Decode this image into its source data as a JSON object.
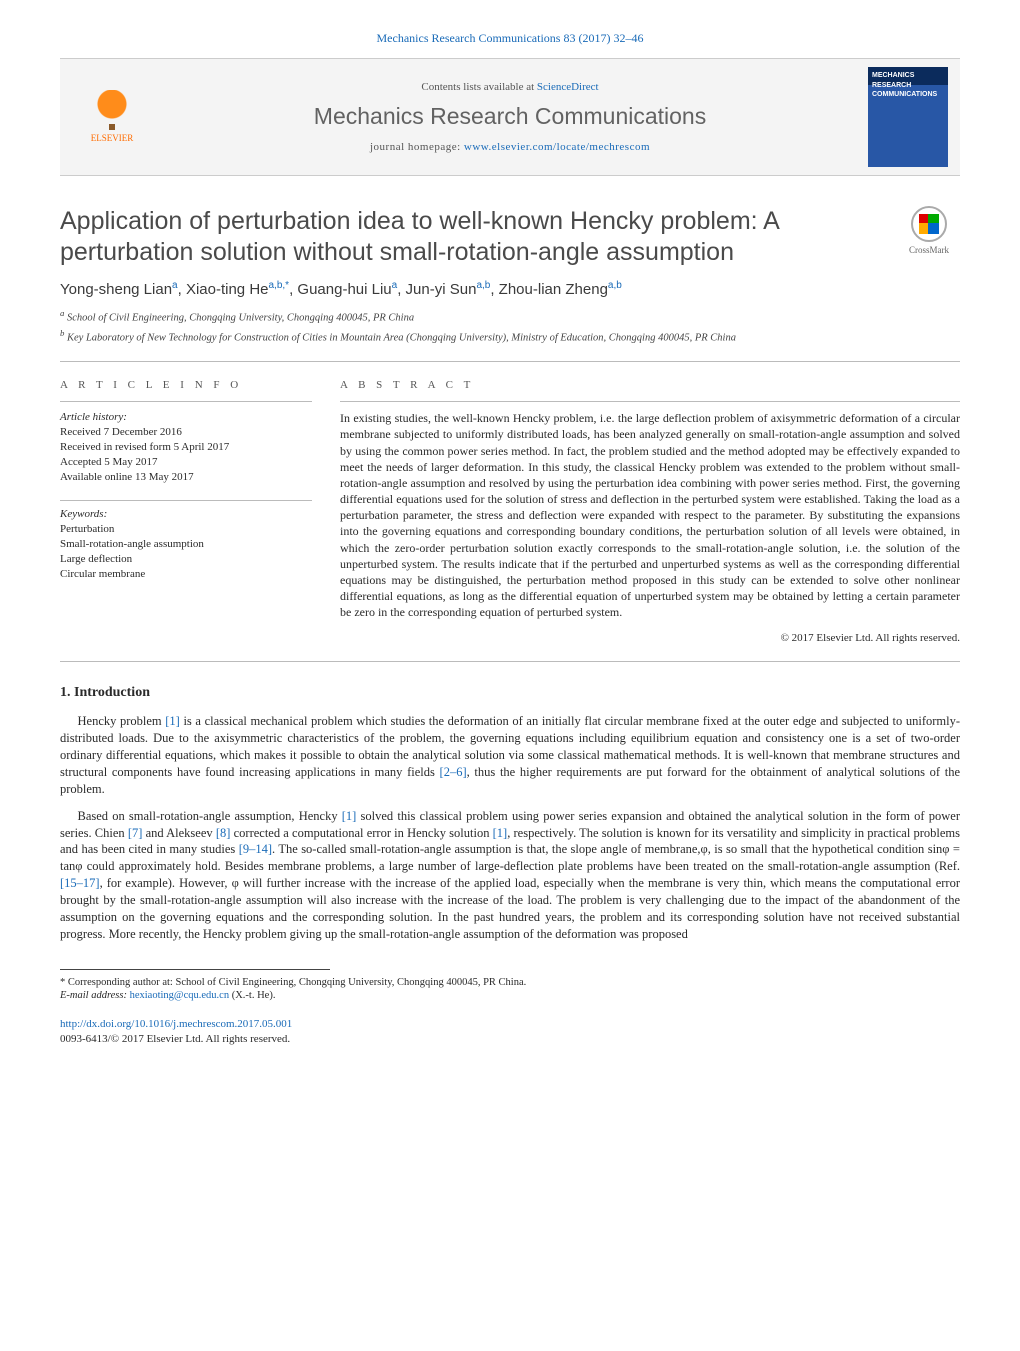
{
  "header_citation": "Mechanics Research Communications 83 (2017) 32–46",
  "banner": {
    "publisher_name": "ELSEVIER",
    "contents_text": "Contents lists available at ",
    "contents_link": "ScienceDirect",
    "journal_title": "Mechanics Research Communications",
    "homepage_label": "journal homepage: ",
    "homepage_url": "www.elsevier.com/locate/mechrescom",
    "cover_text": "MECHANICS\nRESEARCH COMMUNICATIONS"
  },
  "crossmark_label": "CrossMark",
  "title": "Application of perturbation idea to well-known Hencky problem: A perturbation solution without small-rotation-angle assumption",
  "authors_html": "Yong-sheng Lian<sup>a</sup>, Xiao-ting He<sup>a,b,*</sup>, Guang-hui Liu<sup>a</sup>, Jun-yi Sun<sup>a,b</sup>, Zhou-lian Zheng<sup>a,b</sup>",
  "affiliations": [
    "School of Civil Engineering, Chongqing University, Chongqing 400045, PR China",
    "Key Laboratory of New Technology for Construction of Cities in Mountain Area (Chongqing University), Ministry of Education, Chongqing 400045, PR China"
  ],
  "article_info_label": "A R T I C L E   I N F O",
  "abstract_label": "A B S T R A C T",
  "history": {
    "label": "Article history:",
    "received": "Received 7 December 2016",
    "revised": "Received in revised form 5 April 2017",
    "accepted": "Accepted 5 May 2017",
    "online": "Available online 13 May 2017"
  },
  "keywords": {
    "label": "Keywords:",
    "items": [
      "Perturbation",
      "Small-rotation-angle assumption",
      "Large deflection",
      "Circular membrane"
    ]
  },
  "abstract": "In existing studies, the well-known Hencky problem, i.e. the large deflection problem of axisymmetric deformation of a circular membrane subjected to uniformly distributed loads, has been analyzed generally on small-rotation-angle assumption and solved by using the common power series method. In fact, the problem studied and the method adopted may be effectively expanded to meet the needs of larger deformation. In this study, the classical Hencky problem was extended to the problem without small-rotation-angle assumption and resolved by using the perturbation idea combining with power series method. First, the governing differential equations used for the solution of stress and deflection in the perturbed system were established. Taking the load as a perturbation parameter, the stress and deflection were expanded with respect to the parameter. By substituting the expansions into the governing equations and corresponding boundary conditions, the perturbation solution of all levels were obtained, in which the zero-order perturbation solution exactly corresponds to the small-rotation-angle solution, i.e. the solution of the unperturbed system. The results indicate that if the perturbed and unperturbed systems as well as the corresponding differential equations may be distinguished, the perturbation method proposed in this study can be extended to solve other nonlinear differential equations, as long as the differential equation of unperturbed system may be obtained by letting a certain parameter be zero in the corresponding equation of perturbed system.",
  "copyright": "© 2017 Elsevier Ltd. All rights reserved.",
  "section_heading": "1. Introduction",
  "intro_p1": "Hencky problem [1] is a classical mechanical problem which studies the deformation of an initially flat circular membrane fixed at the outer edge and subjected to uniformly-distributed loads. Due to the axisymmetric characteristics of the problem, the governing equations including equilibrium equation and consistency one is a set of two-order ordinary differential equations, which makes it possible to obtain the analytical solution via some classical mathematical methods. It is well-known that membrane structures and structural components have found increasing applications in many fields [2–6], thus the higher requirements are put forward for the obtainment of analytical solutions of the problem.",
  "intro_p2": "Based on small-rotation-angle assumption, Hencky [1] solved this classical problem using power series expansion and obtained the analytical solution in the form of power series. Chien [7] and Alekseev [8] corrected a computational error in Hencky solution [1], respectively. The solution is known for its versatility and simplicity in practical problems and has been cited in many studies [9–14]. The so-called small-rotation-angle assumption is that, the slope angle of membrane,φ, is so small that the hypothetical condition sinφ = tanφ could approximately hold. Besides membrane problems, a large number of large-deflection plate problems have been treated on the small-rotation-angle assumption (Ref. [15–17], for example). However, φ will further increase with the increase of the applied load, especially when the membrane is very thin, which means the computational error brought by the small-rotation-angle assumption will also increase with the increase of the load. The problem is very challenging due to the impact of the abandonment of the assumption on the governing equations and the corresponding solution. In the past hundred years, the problem and its corresponding solution have not received substantial progress. More recently, the Hencky problem giving up the small-rotation-angle assumption of the deformation was proposed",
  "footnote": {
    "corresponding": "Corresponding author at: School of Civil Engineering, Chongqing University, Chongqing 400045, PR China.",
    "email_label": "E-mail address:",
    "email": "hexiaoting@cqu.edu.cn",
    "email_for": "(X.-t. He)."
  },
  "footer": {
    "doi": "http://dx.doi.org/10.1016/j.mechrescom.2017.05.001",
    "rights": "0093-6413/© 2017 Elsevier Ltd. All rights reserved."
  },
  "ref_links": [
    "[1]",
    "[2–6]",
    "[7]",
    "[8]",
    "[9–14]",
    "[15–17]"
  ],
  "colors": {
    "link": "#1a6bb8",
    "text": "#2a2a2a",
    "banner_bg": "#f4f4f4",
    "cover_bg_top": "#0b2b5c",
    "cover_bg_main": "#2857a6",
    "els_orange": "#ff6c00"
  }
}
